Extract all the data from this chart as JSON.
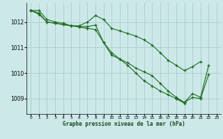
{
  "title": "Graphe pression niveau de la mer (hPa)",
  "xlabel": "Graphe pression niveau de la mer (hPa)",
  "background_color": "#cce8e8",
  "grid_color": "#aacccc",
  "line_color": "#1a6b1a",
  "ylim": [
    1008.4,
    1012.75
  ],
  "xlim": [
    -0.5,
    23.5
  ],
  "yticks": [
    1009,
    1010,
    1011,
    1012
  ],
  "xticks": [
    0,
    1,
    2,
    3,
    4,
    5,
    6,
    7,
    8,
    9,
    10,
    11,
    12,
    13,
    14,
    15,
    16,
    17,
    18,
    19,
    20,
    21,
    22,
    23
  ],
  "lines": [
    [
      1012.45,
      1012.45,
      1012.1,
      1012.0,
      1011.95,
      1011.85,
      1011.8,
      1011.75,
      1011.7,
      1011.2,
      1010.7,
      1010.55,
      1010.4,
      1010.2,
      1010.05,
      1009.9,
      1009.6,
      1009.3,
      1009.05,
      1008.85,
      1009.2,
      1009.05,
      1010.3,
      null
    ],
    [
      1012.45,
      1012.35,
      1012.0,
      1011.95,
      1011.9,
      1011.85,
      1011.85,
      1012.0,
      1012.25,
      1012.1,
      1011.75,
      1011.65,
      1011.55,
      1011.45,
      1011.3,
      1011.1,
      1010.8,
      1010.5,
      1010.3,
      1010.1,
      1010.25,
      1010.45,
      null,
      null
    ],
    [
      1012.45,
      1012.3,
      1012.0,
      1011.95,
      1011.9,
      1011.85,
      1011.82,
      1011.82,
      1011.88,
      1011.2,
      1010.8,
      1010.55,
      1010.3,
      1010.0,
      1009.7,
      1009.5,
      1009.3,
      1009.15,
      1009.0,
      1008.85,
      1009.05,
      1009.0,
      1009.95,
      null
    ],
    [
      1012.45,
      null,
      null,
      null,
      null,
      null,
      null,
      null,
      null,
      null,
      null,
      null,
      null,
      null,
      null,
      null,
      null,
      null,
      1009.0,
      1008.82,
      null,
      null,
      null,
      null
    ]
  ]
}
